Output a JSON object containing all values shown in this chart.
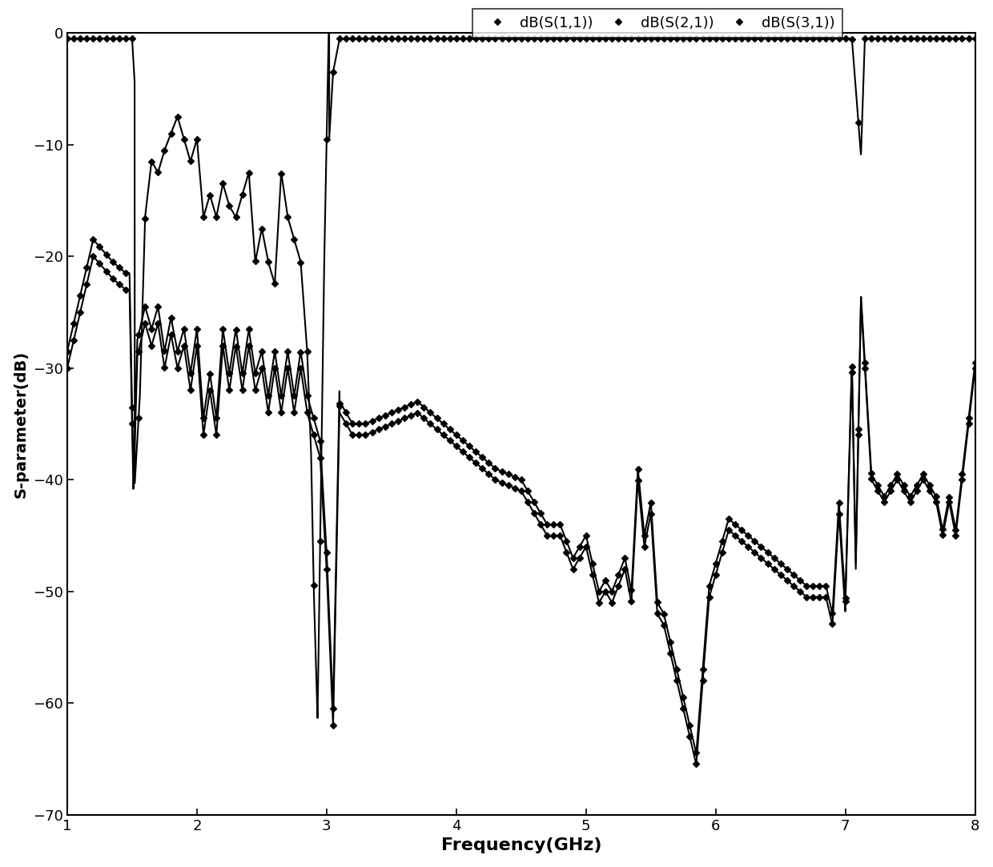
{
  "xlabel": "Frequency(GHz)",
  "ylabel": "S-parameter(dB)",
  "xlim": [
    1,
    8
  ],
  "ylim": [
    -70,
    0
  ],
  "xticks": [
    1,
    2,
    3,
    4,
    5,
    6,
    7,
    8
  ],
  "yticks": [
    0,
    -10,
    -20,
    -30,
    -40,
    -50,
    -60,
    -70
  ],
  "legend_labels": [
    "dB(S(1,1))",
    "dB(S(2,1))",
    "dB(S(3,1))"
  ],
  "line_color": "#000000",
  "background_color": "#ffffff",
  "xlabel_fontsize": 16,
  "ylabel_fontsize": 14,
  "tick_fontsize": 13,
  "legend_fontsize": 13
}
